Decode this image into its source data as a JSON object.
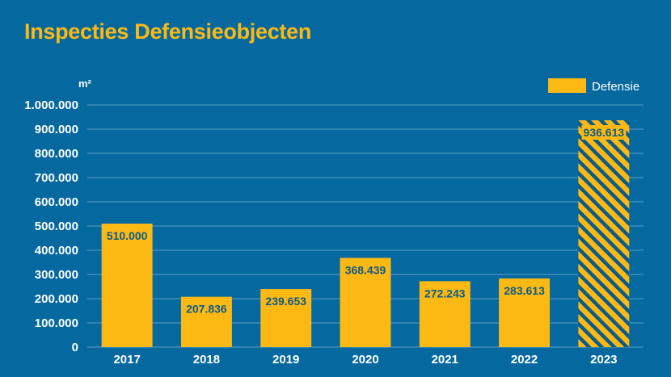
{
  "chart_data": {
    "type": "bar",
    "title": "Inspecties Defensieobjecten",
    "ylabel": "m²",
    "xlabel": "",
    "categories": [
      "2017",
      "2018",
      "2019",
      "2020",
      "2021",
      "2022",
      "2023"
    ],
    "series": [
      {
        "name": "Defensie",
        "values": [
          510000,
          207836,
          239653,
          368439,
          272243,
          283613,
          936613
        ],
        "data_labels": [
          "510.000",
          "207.836",
          "239.653",
          "368.439",
          "272.243",
          "283.613",
          "936.613"
        ]
      }
    ],
    "hatched_categories": [
      "2023"
    ],
    "ylim": [
      0,
      1000000
    ],
    "yticks": [
      0,
      100000,
      200000,
      300000,
      400000,
      500000,
      600000,
      700000,
      800000,
      900000,
      1000000
    ],
    "ytick_labels": [
      "0",
      "100.000",
      "200.000",
      "300.000",
      "400.000",
      "500.000",
      "600.000",
      "700.000",
      "800.000",
      "900.000",
      "1.000.000"
    ],
    "grid": true,
    "legend_position": "top-right",
    "colors": {
      "background": "#0569a0",
      "bar": "#fdb913",
      "title": "#fdb913",
      "data_label": "#0b5a8a",
      "grid": "#5b9dc4",
      "axis_text": "#ffffff"
    }
  }
}
